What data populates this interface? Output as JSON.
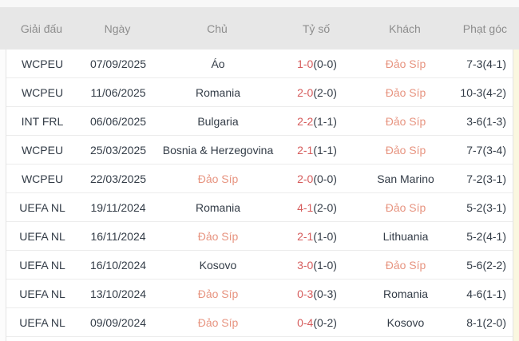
{
  "widget": {
    "description": "head-to-head match statistics table"
  },
  "colors": {
    "page-bg": "#f8f8f8",
    "header-bg": "#e7e7e7",
    "header-text": "#8d8d8d",
    "body-bg": "#ffffff",
    "body-text": "#333c47",
    "row-border": "#ececec",
    "side-border": "#e3e3e3",
    "score-red": "#d65c5c",
    "team-highlight": "#e79480",
    "gutter-left": "#fcfcfc",
    "gutter-right": "#faf7e0"
  },
  "table": {
    "headers": [
      {
        "key": "league",
        "label": "Giải đấu"
      },
      {
        "key": "date",
        "label": "Ngày"
      },
      {
        "key": "home",
        "label": "Chủ"
      },
      {
        "key": "score",
        "label": "Tỷ số"
      },
      {
        "key": "away",
        "label": "Khách"
      },
      {
        "key": "corners",
        "label": "Phạt góc"
      }
    ],
    "rows": [
      {
        "league": "WCPEU",
        "date": "07/09/2025",
        "home": {
          "name": "Áo",
          "highlight": false
        },
        "score": {
          "ft": "1-0",
          "ht": "(0-0)"
        },
        "away": {
          "name": "Đảo Síp",
          "highlight": true
        },
        "corners": "7-3(4-1)"
      },
      {
        "league": "WCPEU",
        "date": "11/06/2025",
        "home": {
          "name": "Romania",
          "highlight": false
        },
        "score": {
          "ft": "2-0",
          "ht": "(2-0)"
        },
        "away": {
          "name": "Đảo Síp",
          "highlight": true
        },
        "corners": "10-3(4-2)"
      },
      {
        "league": "INT FRL",
        "date": "06/06/2025",
        "home": {
          "name": "Bulgaria",
          "highlight": false
        },
        "score": {
          "ft": "2-2",
          "ht": "(1-1)"
        },
        "away": {
          "name": "Đảo Síp",
          "highlight": true
        },
        "corners": "3-6(1-3)"
      },
      {
        "league": "WCPEU",
        "date": "25/03/2025",
        "home": {
          "name": "Bosnia & Herzegovina",
          "highlight": false
        },
        "score": {
          "ft": "2-1",
          "ht": "(1-1)"
        },
        "away": {
          "name": "Đảo Síp",
          "highlight": true
        },
        "corners": "7-7(3-4)"
      },
      {
        "league": "WCPEU",
        "date": "22/03/2025",
        "home": {
          "name": "Đảo Síp",
          "highlight": true
        },
        "score": {
          "ft": "2-0",
          "ht": "(0-0)"
        },
        "away": {
          "name": "San Marino",
          "highlight": false
        },
        "corners": "7-2(3-1)"
      },
      {
        "league": "UEFA NL",
        "date": "19/11/2024",
        "home": {
          "name": "Romania",
          "highlight": false
        },
        "score": {
          "ft": "4-1",
          "ht": "(2-0)"
        },
        "away": {
          "name": "Đảo Síp",
          "highlight": true
        },
        "corners": "5-2(3-1)"
      },
      {
        "league": "UEFA NL",
        "date": "16/11/2024",
        "home": {
          "name": "Đảo Síp",
          "highlight": true
        },
        "score": {
          "ft": "2-1",
          "ht": "(1-0)"
        },
        "away": {
          "name": "Lithuania",
          "highlight": false
        },
        "corners": "5-2(4-1)"
      },
      {
        "league": "UEFA NL",
        "date": "16/10/2024",
        "home": {
          "name": "Kosovo",
          "highlight": false
        },
        "score": {
          "ft": "3-0",
          "ht": "(1-0)"
        },
        "away": {
          "name": "Đảo Síp",
          "highlight": true
        },
        "corners": "5-6(2-2)"
      },
      {
        "league": "UEFA NL",
        "date": "13/10/2024",
        "home": {
          "name": "Đảo Síp",
          "highlight": true
        },
        "score": {
          "ft": "0-3",
          "ht": "(0-3)"
        },
        "away": {
          "name": "Romania",
          "highlight": false
        },
        "corners": "4-6(1-1)"
      },
      {
        "league": "UEFA NL",
        "date": "09/09/2024",
        "home": {
          "name": "Đảo Síp",
          "highlight": true
        },
        "score": {
          "ft": "0-4",
          "ht": "(0-2)"
        },
        "away": {
          "name": "Kosovo",
          "highlight": false
        },
        "corners": "8-1(2-0)"
      }
    ]
  }
}
